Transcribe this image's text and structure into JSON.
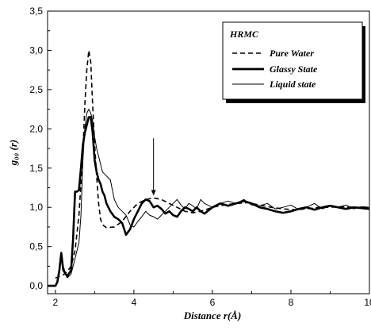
{
  "chart_data": {
    "type": "line",
    "xlabel": "Distance r(Å)",
    "ylabel": "g₀₀ (r)",
    "xlim": [
      1.8,
      10
    ],
    "ylim": [
      -0.1,
      3.5
    ],
    "x_ticks": [
      2,
      4,
      6,
      8,
      10
    ],
    "x_tick_labels": [
      "2",
      "4",
      "6",
      "8",
      "10"
    ],
    "y_ticks": [
      0.0,
      0.5,
      1.0,
      1.5,
      2.0,
      2.5,
      3.0,
      3.5
    ],
    "y_tick_labels": [
      "0,0",
      "0,5",
      "1,0",
      "1,5",
      "2,0",
      "2,5",
      "3,0",
      "3,5"
    ],
    "grid": false,
    "legend": {
      "title": "HRMC",
      "placement": "top-right",
      "entries": [
        "Pure Water",
        "Glassy State",
        "Liquid state"
      ]
    },
    "annotation": {
      "type": "arrow",
      "x": 4.5,
      "from_y": 1.88,
      "to_y": 1.15
    },
    "series": [
      {
        "name": "Pure Water",
        "style": "dashed",
        "x": [
          2.0,
          2.1,
          2.2,
          2.3,
          2.4,
          2.5,
          2.6,
          2.7,
          2.75,
          2.8,
          2.85,
          2.9,
          2.95,
          3.0,
          3.05,
          3.1,
          3.15,
          3.2,
          3.3,
          3.5,
          3.7,
          3.9,
          4.1,
          4.3,
          4.5,
          4.7,
          4.9,
          5.1,
          5.3,
          5.5,
          5.7,
          6.0,
          6.3,
          6.6,
          6.9,
          7.2,
          7.5,
          7.8,
          8.1,
          8.4,
          8.7,
          9.0,
          9.3,
          9.6,
          10.0
        ],
        "y": [
          0.1,
          0.12,
          0.14,
          0.18,
          0.25,
          0.45,
          0.9,
          1.7,
          2.3,
          2.75,
          3.0,
          2.85,
          2.3,
          1.8,
          1.4,
          1.05,
          0.85,
          0.78,
          0.74,
          0.75,
          0.82,
          0.95,
          1.05,
          1.1,
          1.12,
          1.1,
          1.05,
          1.0,
          0.95,
          0.93,
          0.95,
          1.0,
          1.03,
          1.05,
          1.06,
          1.03,
          1.0,
          0.98,
          0.97,
          0.98,
          1.0,
          1.0,
          1.01,
          1.0,
          1.0
        ]
      },
      {
        "name": "Glassy State",
        "style": "thick",
        "x": [
          1.8,
          2.0,
          2.05,
          2.1,
          2.15,
          2.2,
          2.3,
          2.4,
          2.45,
          2.5,
          2.55,
          2.6,
          2.65,
          2.7,
          2.75,
          2.8,
          2.85,
          2.9,
          2.95,
          3.0,
          3.05,
          3.1,
          3.15,
          3.2,
          3.25,
          3.3,
          3.4,
          3.5,
          3.6,
          3.7,
          3.8,
          3.9,
          4.0,
          4.1,
          4.2,
          4.3,
          4.4,
          4.5,
          4.6,
          4.7,
          4.8,
          4.9,
          5.0,
          5.1,
          5.2,
          5.3,
          5.4,
          5.5,
          5.6,
          5.7,
          5.8,
          6.0,
          6.2,
          6.4,
          6.6,
          6.8,
          7.0,
          7.2,
          7.4,
          7.6,
          7.8,
          8.0,
          8.2,
          8.4,
          8.6,
          8.8,
          9.0,
          9.2,
          9.4,
          9.6,
          9.8,
          10.0
        ],
        "y": [
          0.0,
          0.0,
          0.05,
          0.2,
          0.42,
          0.2,
          0.12,
          0.2,
          0.6,
          1.2,
          1.2,
          1.22,
          1.5,
          1.8,
          1.95,
          2.05,
          2.15,
          2.15,
          1.95,
          1.6,
          1.45,
          1.35,
          1.3,
          1.2,
          1.15,
          1.05,
          0.95,
          0.88,
          0.85,
          0.8,
          0.65,
          0.72,
          0.85,
          0.95,
          1.05,
          1.1,
          1.08,
          1.0,
          1.02,
          0.98,
          0.92,
          0.95,
          0.9,
          0.88,
          0.95,
          1.0,
          0.98,
          0.95,
          1.0,
          0.95,
          0.92,
          1.0,
          1.05,
          1.02,
          1.05,
          1.08,
          1.05,
          1.0,
          0.98,
          0.95,
          0.93,
          0.95,
          0.98,
          1.0,
          0.97,
          1.0,
          1.02,
          1.0,
          0.98,
          1.0,
          0.99,
          0.98
        ]
      },
      {
        "name": "Liquid state",
        "style": "thin",
        "x": [
          1.8,
          2.0,
          2.1,
          2.15,
          2.2,
          2.3,
          2.4,
          2.5,
          2.55,
          2.6,
          2.65,
          2.7,
          2.75,
          2.8,
          2.85,
          2.9,
          2.95,
          3.0,
          3.05,
          3.1,
          3.15,
          3.2,
          3.3,
          3.4,
          3.5,
          3.6,
          3.7,
          3.8,
          3.9,
          4.0,
          4.1,
          4.2,
          4.3,
          4.4,
          4.5,
          4.6,
          4.7,
          4.8,
          4.9,
          5.0,
          5.1,
          5.2,
          5.3,
          5.4,
          5.5,
          5.6,
          5.7,
          5.8,
          6.0,
          6.2,
          6.4,
          6.6,
          6.8,
          7.0,
          7.2,
          7.4,
          7.6,
          7.8,
          8.0,
          8.2,
          8.4,
          8.6,
          8.8,
          9.0,
          9.2,
          9.4,
          9.6,
          9.8,
          10.0
        ],
        "y": [
          0.0,
          0.0,
          0.15,
          0.38,
          0.25,
          0.1,
          0.15,
          0.35,
          0.45,
          0.55,
          0.9,
          1.6,
          2.0,
          2.2,
          2.25,
          2.2,
          2.1,
          1.9,
          1.75,
          1.65,
          1.55,
          1.45,
          1.4,
          1.35,
          1.1,
          1.0,
          0.95,
          0.9,
          0.78,
          0.75,
          0.82,
          0.88,
          0.95,
          0.9,
          0.88,
          0.85,
          0.9,
          0.95,
          1.0,
          1.05,
          1.1,
          1.03,
          0.98,
          1.05,
          1.02,
          0.98,
          1.1,
          1.05,
          1.0,
          1.05,
          1.08,
          1.05,
          1.1,
          1.03,
          1.02,
          1.05,
          0.98,
          1.0,
          1.03,
          0.97,
          1.0,
          1.05,
          0.98,
          1.02,
          1.0,
          1.03,
          0.98,
          1.01,
          1.0
        ]
      }
    ]
  }
}
